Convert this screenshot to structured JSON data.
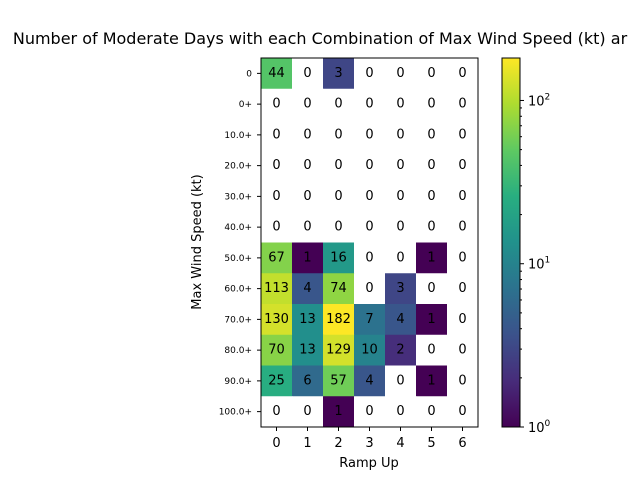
{
  "chart_data": {
    "type": "heatmap",
    "title": "Number of Moderate Days with each Combination of Max Wind Speed (kt) ar",
    "xlabel": "Ramp Up",
    "ylabel": "Max Wind Speed (kt)",
    "x_categories": [
      "0",
      "1",
      "2",
      "3",
      "4",
      "5",
      "6"
    ],
    "y_categories": [
      "0",
      "0+",
      "10.0+",
      "20.0+",
      "30.0+",
      "40.0+",
      "50.0+",
      "60.0+",
      "70.0+",
      "80.0+",
      "90.0+",
      "100.0+"
    ],
    "values": [
      [
        44,
        0,
        3,
        0,
        0,
        0,
        0
      ],
      [
        0,
        0,
        0,
        0,
        0,
        0,
        0
      ],
      [
        0,
        0,
        0,
        0,
        0,
        0,
        0
      ],
      [
        0,
        0,
        0,
        0,
        0,
        0,
        0
      ],
      [
        0,
        0,
        0,
        0,
        0,
        0,
        0
      ],
      [
        0,
        0,
        0,
        0,
        0,
        0,
        0
      ],
      [
        67,
        1,
        16,
        0,
        0,
        1,
        0
      ],
      [
        113,
        4,
        74,
        0,
        3,
        0,
        0
      ],
      [
        130,
        13,
        182,
        7,
        4,
        1,
        0
      ],
      [
        70,
        13,
        129,
        10,
        2,
        0,
        0
      ],
      [
        25,
        6,
        57,
        4,
        0,
        1,
        0
      ],
      [
        0,
        0,
        1,
        0,
        0,
        0,
        0
      ]
    ],
    "colormap": "viridis",
    "color_scale": "log",
    "zero_cells_color": "#ffffff",
    "colorbar": {
      "min": 1,
      "max": 182,
      "tick_labels": [
        "10^0",
        "10^1",
        "10^2"
      ]
    }
  }
}
